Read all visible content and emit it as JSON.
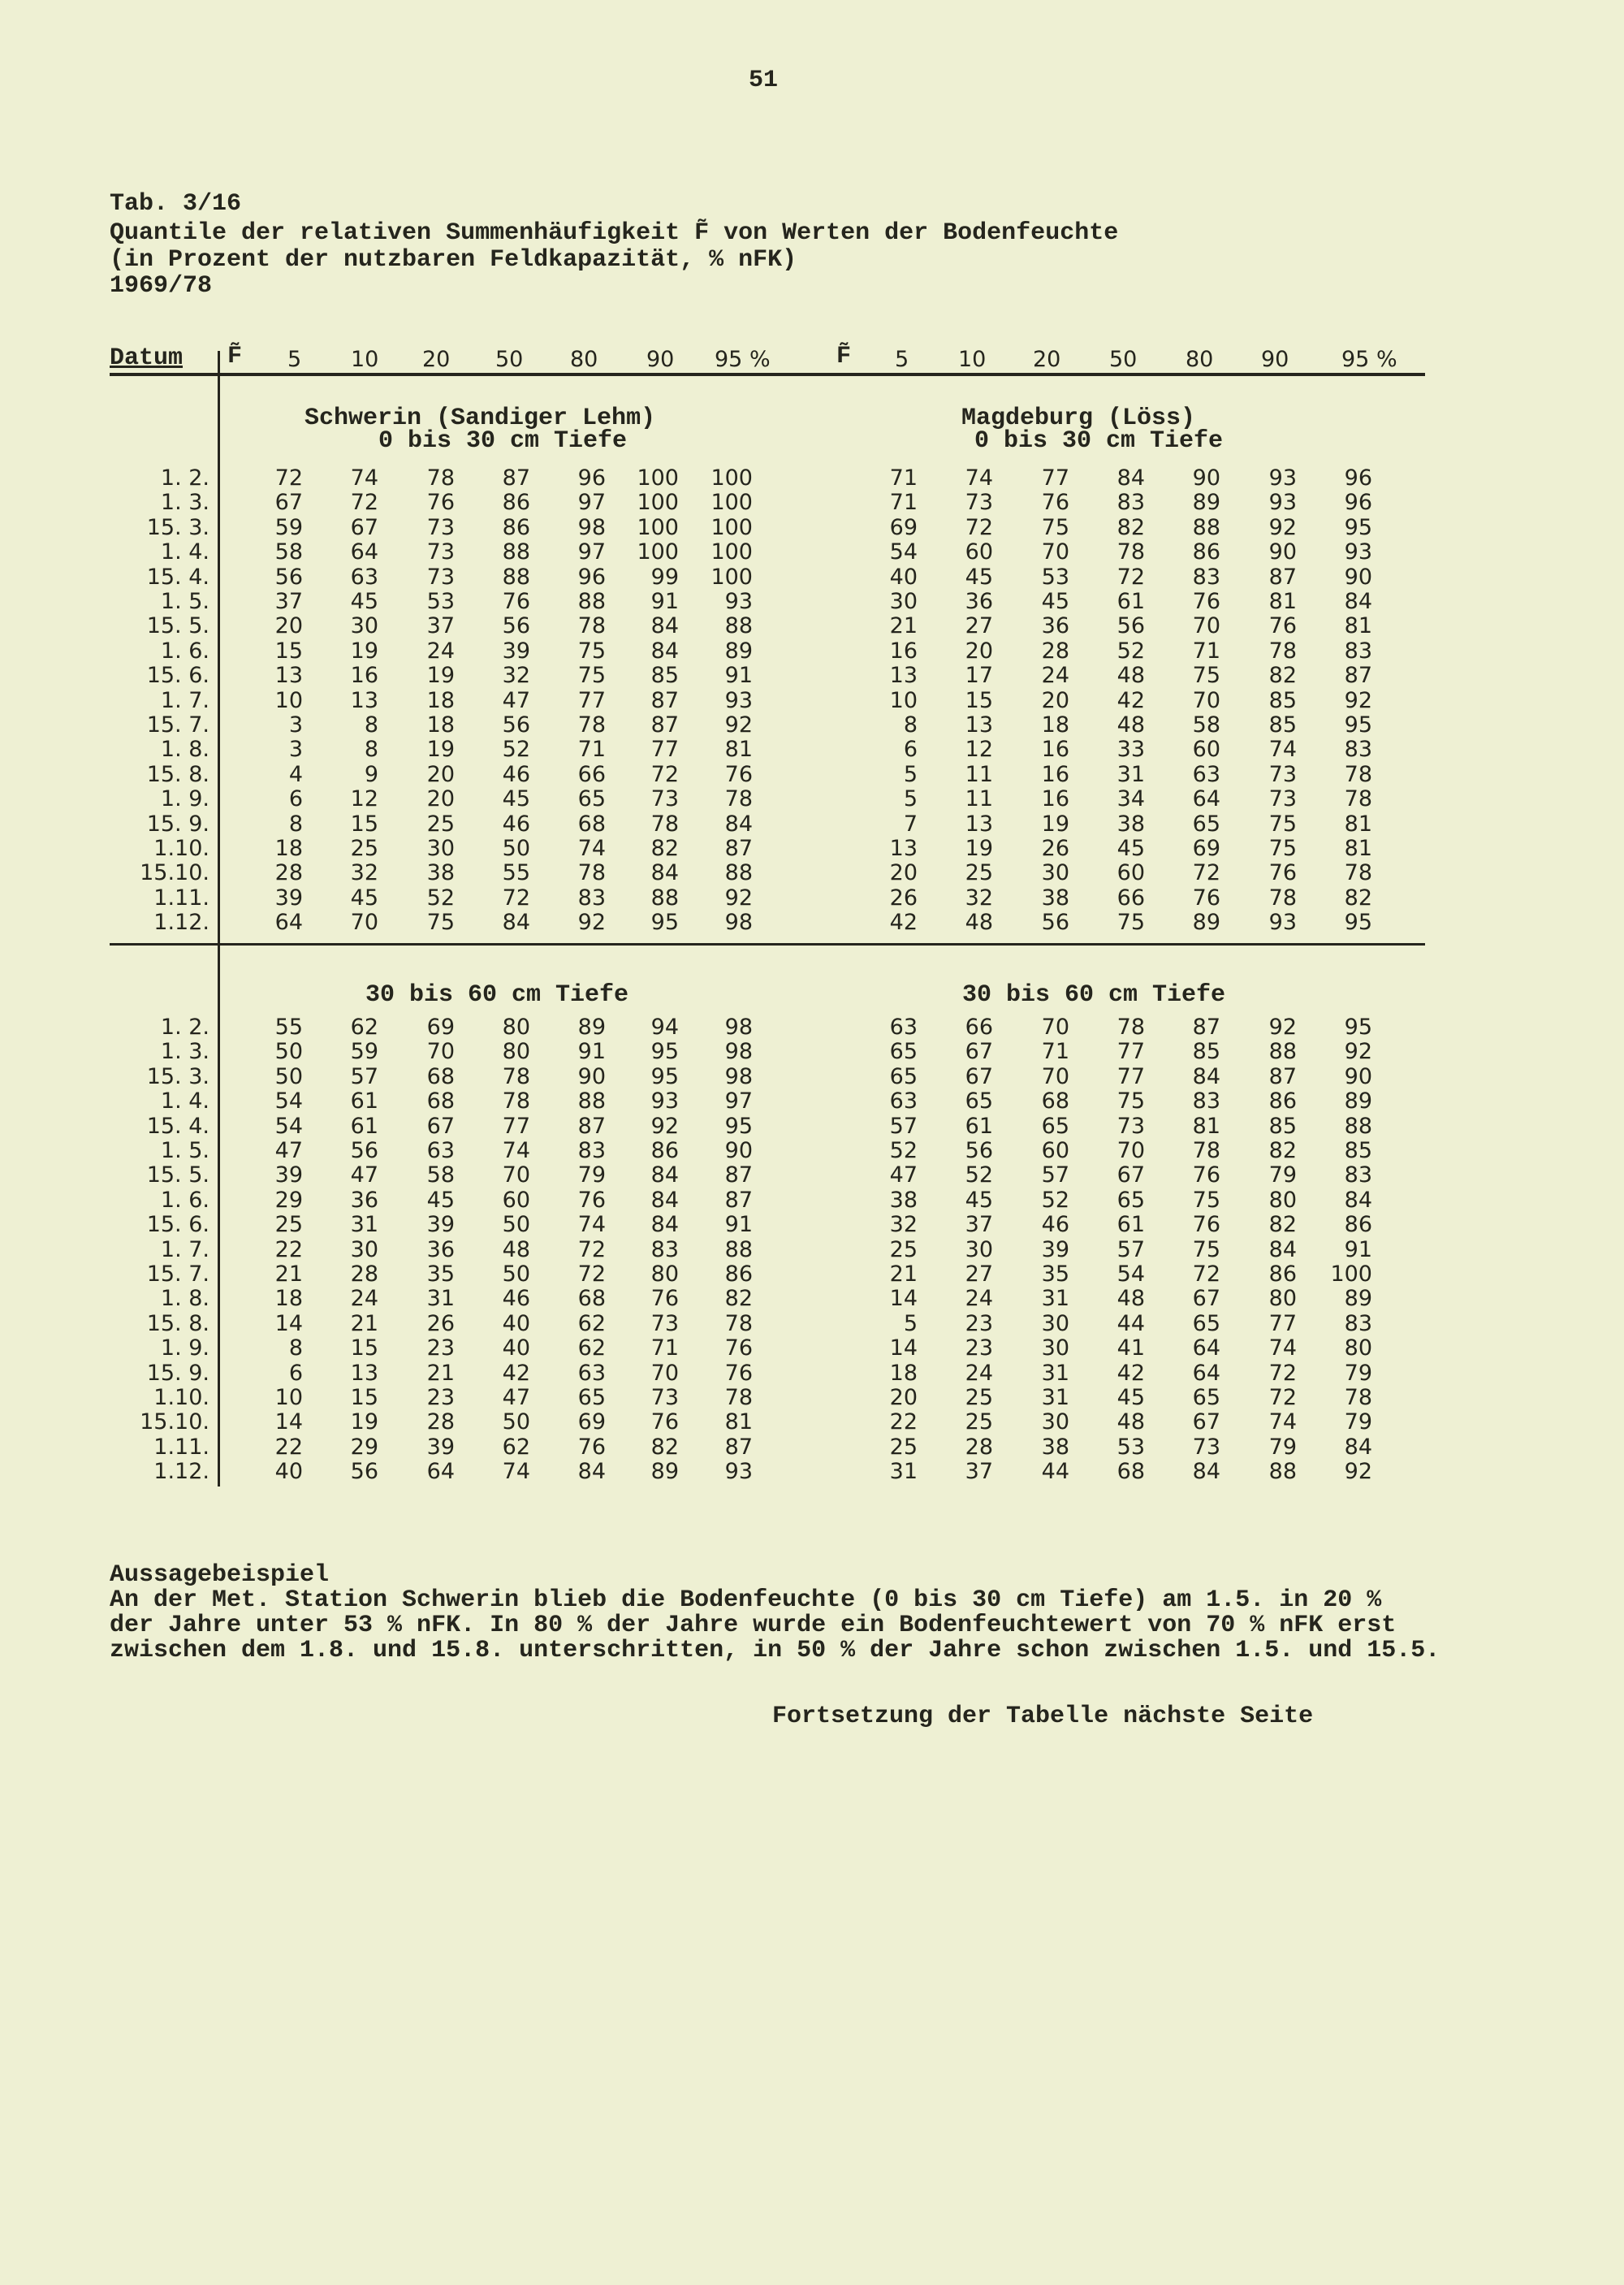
{
  "page_number": "51",
  "table_id": "Tab. 3/16",
  "title_lines": [
    "Quantile der relativen Summenhäufigkeit F̃ von Werten der Bodenfeuchte",
    "(in Prozent der nutzbaren Feldkapazität, % nFK)",
    "1969/78"
  ],
  "header": {
    "date_label": "Datum",
    "f_symbol": "F̃",
    "quantiles": [
      "5",
      "10",
      "20",
      "50",
      "80",
      "90",
      "95 %"
    ]
  },
  "stations": {
    "left": {
      "name": "Schwerin (Sandiger Lehm)"
    },
    "right": {
      "name": "Magdeburg (Löss)"
    }
  },
  "depths": {
    "top_left": "0 bis 30 cm Tiefe",
    "top_right": "0 bis 30 cm Tiefe",
    "bottom_left": "30 bis 60 cm Tiefe",
    "bottom_right": "30 bis 60 cm Tiefe"
  },
  "dates": [
    "1. 2.",
    "1. 3.",
    "15. 3.",
    "1. 4.",
    "15. 4.",
    "1. 5.",
    "15. 5.",
    "1. 6.",
    "15. 6.",
    "1. 7.",
    "15. 7.",
    "1. 8.",
    "15. 8.",
    "1. 9.",
    "15. 9.",
    "1.10.",
    "15.10.",
    "1.11.",
    "1.12."
  ],
  "tables": {
    "top_left": [
      [
        72,
        74,
        78,
        87,
        96,
        100,
        100
      ],
      [
        67,
        72,
        76,
        86,
        97,
        100,
        100
      ],
      [
        59,
        67,
        73,
        86,
        98,
        100,
        100
      ],
      [
        58,
        64,
        73,
        88,
        97,
        100,
        100
      ],
      [
        56,
        63,
        73,
        88,
        96,
        99,
        100
      ],
      [
        37,
        45,
        53,
        76,
        88,
        91,
        93
      ],
      [
        20,
        30,
        37,
        56,
        78,
        84,
        88
      ],
      [
        15,
        19,
        24,
        39,
        75,
        84,
        89
      ],
      [
        13,
        16,
        19,
        32,
        75,
        85,
        91
      ],
      [
        10,
        13,
        18,
        47,
        77,
        87,
        93
      ],
      [
        3,
        8,
        18,
        56,
        78,
        87,
        92
      ],
      [
        3,
        8,
        19,
        52,
        71,
        77,
        81
      ],
      [
        4,
        9,
        20,
        46,
        66,
        72,
        76
      ],
      [
        6,
        12,
        20,
        45,
        65,
        73,
        78
      ],
      [
        8,
        15,
        25,
        46,
        68,
        78,
        84
      ],
      [
        18,
        25,
        30,
        50,
        74,
        82,
        87
      ],
      [
        28,
        32,
        38,
        55,
        78,
        84,
        88
      ],
      [
        39,
        45,
        52,
        72,
        83,
        88,
        92
      ],
      [
        64,
        70,
        75,
        84,
        92,
        95,
        98
      ]
    ],
    "top_right": [
      [
        71,
        74,
        77,
        84,
        90,
        93,
        96
      ],
      [
        71,
        73,
        76,
        83,
        89,
        93,
        96
      ],
      [
        69,
        72,
        75,
        82,
        88,
        92,
        95
      ],
      [
        54,
        60,
        70,
        78,
        86,
        90,
        93
      ],
      [
        40,
        45,
        53,
        72,
        83,
        87,
        90
      ],
      [
        30,
        36,
        45,
        61,
        76,
        81,
        84
      ],
      [
        21,
        27,
        36,
        56,
        70,
        76,
        81
      ],
      [
        16,
        20,
        28,
        52,
        71,
        78,
        83
      ],
      [
        13,
        17,
        24,
        48,
        75,
        82,
        87
      ],
      [
        10,
        15,
        20,
        42,
        70,
        85,
        92
      ],
      [
        8,
        13,
        18,
        48,
        58,
        85,
        95
      ],
      [
        6,
        12,
        16,
        33,
        60,
        74,
        83
      ],
      [
        5,
        11,
        16,
        31,
        63,
        73,
        78
      ],
      [
        5,
        11,
        16,
        34,
        64,
        73,
        78
      ],
      [
        7,
        13,
        19,
        38,
        65,
        75,
        81
      ],
      [
        13,
        19,
        26,
        45,
        69,
        75,
        81
      ],
      [
        20,
        25,
        30,
        60,
        72,
        76,
        78
      ],
      [
        26,
        32,
        38,
        66,
        76,
        78,
        82
      ],
      [
        42,
        48,
        56,
        75,
        89,
        93,
        95
      ]
    ],
    "bottom_left": [
      [
        55,
        62,
        69,
        80,
        89,
        94,
        98
      ],
      [
        50,
        59,
        70,
        80,
        91,
        95,
        98
      ],
      [
        50,
        57,
        68,
        78,
        90,
        95,
        98
      ],
      [
        54,
        61,
        68,
        78,
        88,
        93,
        97
      ],
      [
        54,
        61,
        67,
        77,
        87,
        92,
        95
      ],
      [
        47,
        56,
        63,
        74,
        83,
        86,
        90
      ],
      [
        39,
        47,
        58,
        70,
        79,
        84,
        87
      ],
      [
        29,
        36,
        45,
        60,
        76,
        84,
        87
      ],
      [
        25,
        31,
        39,
        50,
        74,
        84,
        91
      ],
      [
        22,
        30,
        36,
        48,
        72,
        83,
        88
      ],
      [
        21,
        28,
        35,
        50,
        72,
        80,
        86
      ],
      [
        18,
        24,
        31,
        46,
        68,
        76,
        82
      ],
      [
        14,
        21,
        26,
        40,
        62,
        73,
        78
      ],
      [
        8,
        15,
        23,
        40,
        62,
        71,
        76
      ],
      [
        6,
        13,
        21,
        42,
        63,
        70,
        76
      ],
      [
        10,
        15,
        23,
        47,
        65,
        73,
        78
      ],
      [
        14,
        19,
        28,
        50,
        69,
        76,
        81
      ],
      [
        22,
        29,
        39,
        62,
        76,
        82,
        87
      ],
      [
        40,
        56,
        64,
        74,
        84,
        89,
        93
      ]
    ],
    "bottom_right": [
      [
        63,
        66,
        70,
        78,
        87,
        92,
        95
      ],
      [
        65,
        67,
        71,
        77,
        85,
        88,
        92
      ],
      [
        65,
        67,
        70,
        77,
        84,
        87,
        90
      ],
      [
        63,
        65,
        68,
        75,
        83,
        86,
        89
      ],
      [
        57,
        61,
        65,
        73,
        81,
        85,
        88
      ],
      [
        52,
        56,
        60,
        70,
        78,
        82,
        85
      ],
      [
        47,
        52,
        57,
        67,
        76,
        79,
        83
      ],
      [
        38,
        45,
        52,
        65,
        75,
        80,
        84
      ],
      [
        32,
        37,
        46,
        61,
        76,
        82,
        86
      ],
      [
        25,
        30,
        39,
        57,
        75,
        84,
        91
      ],
      [
        21,
        27,
        35,
        54,
        72,
        86,
        100
      ],
      [
        14,
        24,
        31,
        48,
        67,
        80,
        89
      ],
      [
        5,
        23,
        30,
        44,
        65,
        77,
        83
      ],
      [
        14,
        23,
        30,
        41,
        64,
        74,
        80
      ],
      [
        18,
        24,
        31,
        42,
        64,
        72,
        79
      ],
      [
        20,
        25,
        31,
        45,
        65,
        72,
        78
      ],
      [
        22,
        25,
        30,
        48,
        67,
        74,
        79
      ],
      [
        25,
        28,
        38,
        53,
        73,
        79,
        84
      ],
      [
        31,
        37,
        44,
        68,
        84,
        88,
        92
      ]
    ]
  },
  "example": {
    "heading": "Aussagebeispiel",
    "lines": [
      "An der Met. Station Schwerin blieb die Bodenfeuchte (0 bis 30 cm Tiefe) am 1.5. in 20 %",
      "der Jahre unter 53 % nFK. In 80 % der Jahre wurde ein Bodenfeuchtewert von 70 % nFK erst",
      "zwischen dem 1.8. und 15.8. unterschritten, in 50 % der Jahre schon zwischen 1.5. und 15.5."
    ]
  },
  "continuation": "Fortsetzung der Tabelle nächste Seite",
  "colors": {
    "paper": "#eef0d3",
    "ink": "#25251d"
  }
}
